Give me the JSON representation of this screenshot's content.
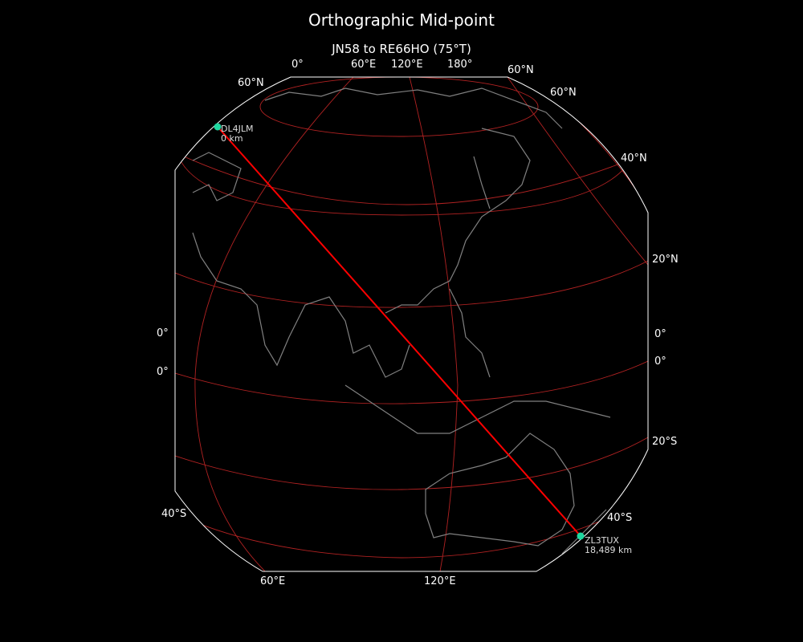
{
  "title": "Orthographic Mid-point",
  "subtitle": "JN58 to RE66HO (75°T)",
  "map": {
    "projection": "orthographic",
    "colors": {
      "background": "#000000",
      "coastline": "#808080",
      "graticule": "#b22222",
      "path": "#ff0000",
      "station": "#1fd8a0",
      "border": "#ffffff"
    },
    "top_labels": [
      "0°",
      "60°E",
      "120°E",
      "180°",
      "60°N"
    ],
    "left_labels": [
      "60°N",
      "0°",
      "0°",
      "40°S"
    ],
    "right_labels": [
      "60°N",
      "40°N",
      "20°N",
      "0°",
      "0°",
      "20°S",
      "40°S"
    ],
    "bottom_labels": [
      "60°E",
      "120°E"
    ],
    "stations": [
      {
        "call": "DL4JLM",
        "distance": "0 km"
      },
      {
        "call": "ZL3TUX",
        "distance": "18,489 km"
      }
    ]
  }
}
